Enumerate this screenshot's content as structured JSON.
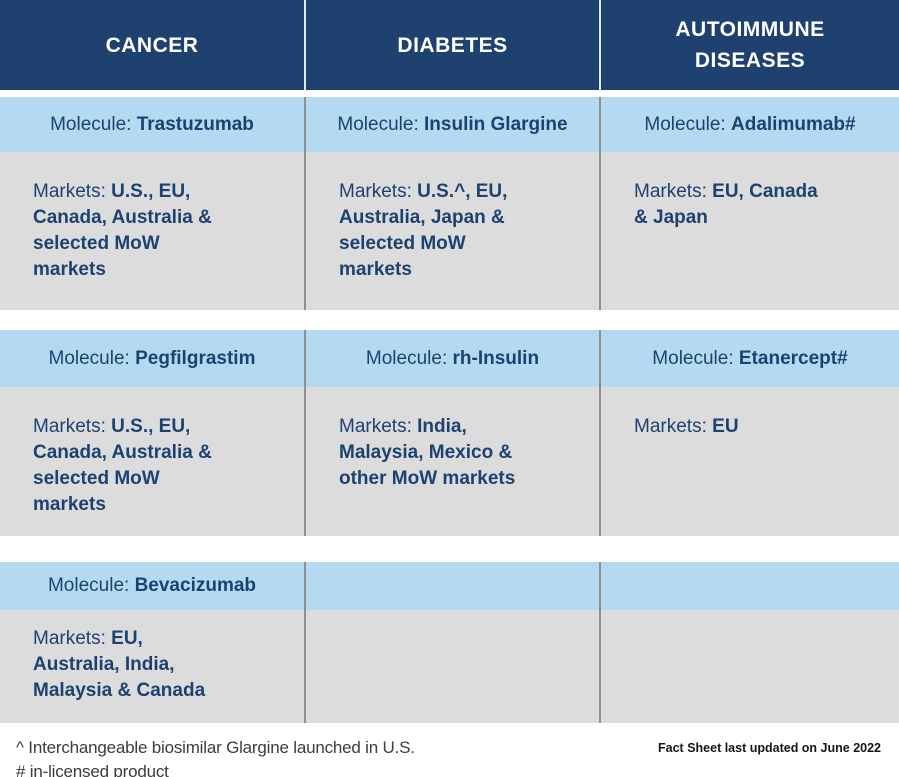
{
  "colors": {
    "header_navy": "#1f4170",
    "band_blue": "#b4daf1",
    "band_gray": "#dcdcdc",
    "text_navy": "#1d4271",
    "header_divider": "#dfe7ef",
    "body_divider": "#8f8f8f",
    "footnote_gray": "#3c3c3e"
  },
  "header": {
    "columns": [
      "CANCER",
      "DIABETES",
      "AUTOIMMUNE\nDISEASES"
    ]
  },
  "groups": [
    {
      "cells": [
        {
          "molecule_label": "Molecule:",
          "molecule_name": "Trastuzumab",
          "markets_label": "Markets:",
          "markets_value": "U.S., EU,\nCanada, Australia &\nselected MoW\nmarkets"
        },
        {
          "molecule_label": "Molecule:",
          "molecule_name": "Insulin Glargine",
          "markets_label": "Markets:",
          "markets_value": "U.S.^, EU,\nAustralia, Japan &\nselected MoW\nmarkets"
        },
        {
          "molecule_label": "Molecule:",
          "molecule_name": "Adalimumab#",
          "markets_label": "Markets:",
          "markets_value": "EU, Canada\n& Japan"
        }
      ]
    },
    {
      "cells": [
        {
          "molecule_label": "Molecule:",
          "molecule_name": "Pegfilgrastim",
          "markets_label": "Markets:",
          "markets_value": "U.S., EU,\nCanada, Australia &\nselected MoW\nmarkets"
        },
        {
          "molecule_label": "Molecule:",
          "molecule_name": "rh-Insulin",
          "markets_label": "Markets:",
          "markets_value": "India,\nMalaysia, Mexico &\nother MoW markets"
        },
        {
          "molecule_label": "Molecule:",
          "molecule_name": "Etanercept#",
          "markets_label": "Markets:",
          "markets_value": "EU"
        }
      ]
    },
    {
      "cells": [
        {
          "molecule_label": "Molecule:",
          "molecule_name": "Bevacizumab",
          "markets_label": "Markets:",
          "markets_value": "EU,\nAustralia, India,\nMalaysia & Canada"
        },
        {
          "molecule_label": "",
          "molecule_name": "",
          "markets_label": "",
          "markets_value": ""
        },
        {
          "molecule_label": "",
          "molecule_name": "",
          "markets_label": "",
          "markets_value": ""
        }
      ]
    }
  ],
  "footer": {
    "note_caret": "^ Interchangeable biosimilar Glargine launched in U.S.",
    "note_hash": "# in-licensed product",
    "updated": "Fact Sheet last updated on June 2022"
  }
}
